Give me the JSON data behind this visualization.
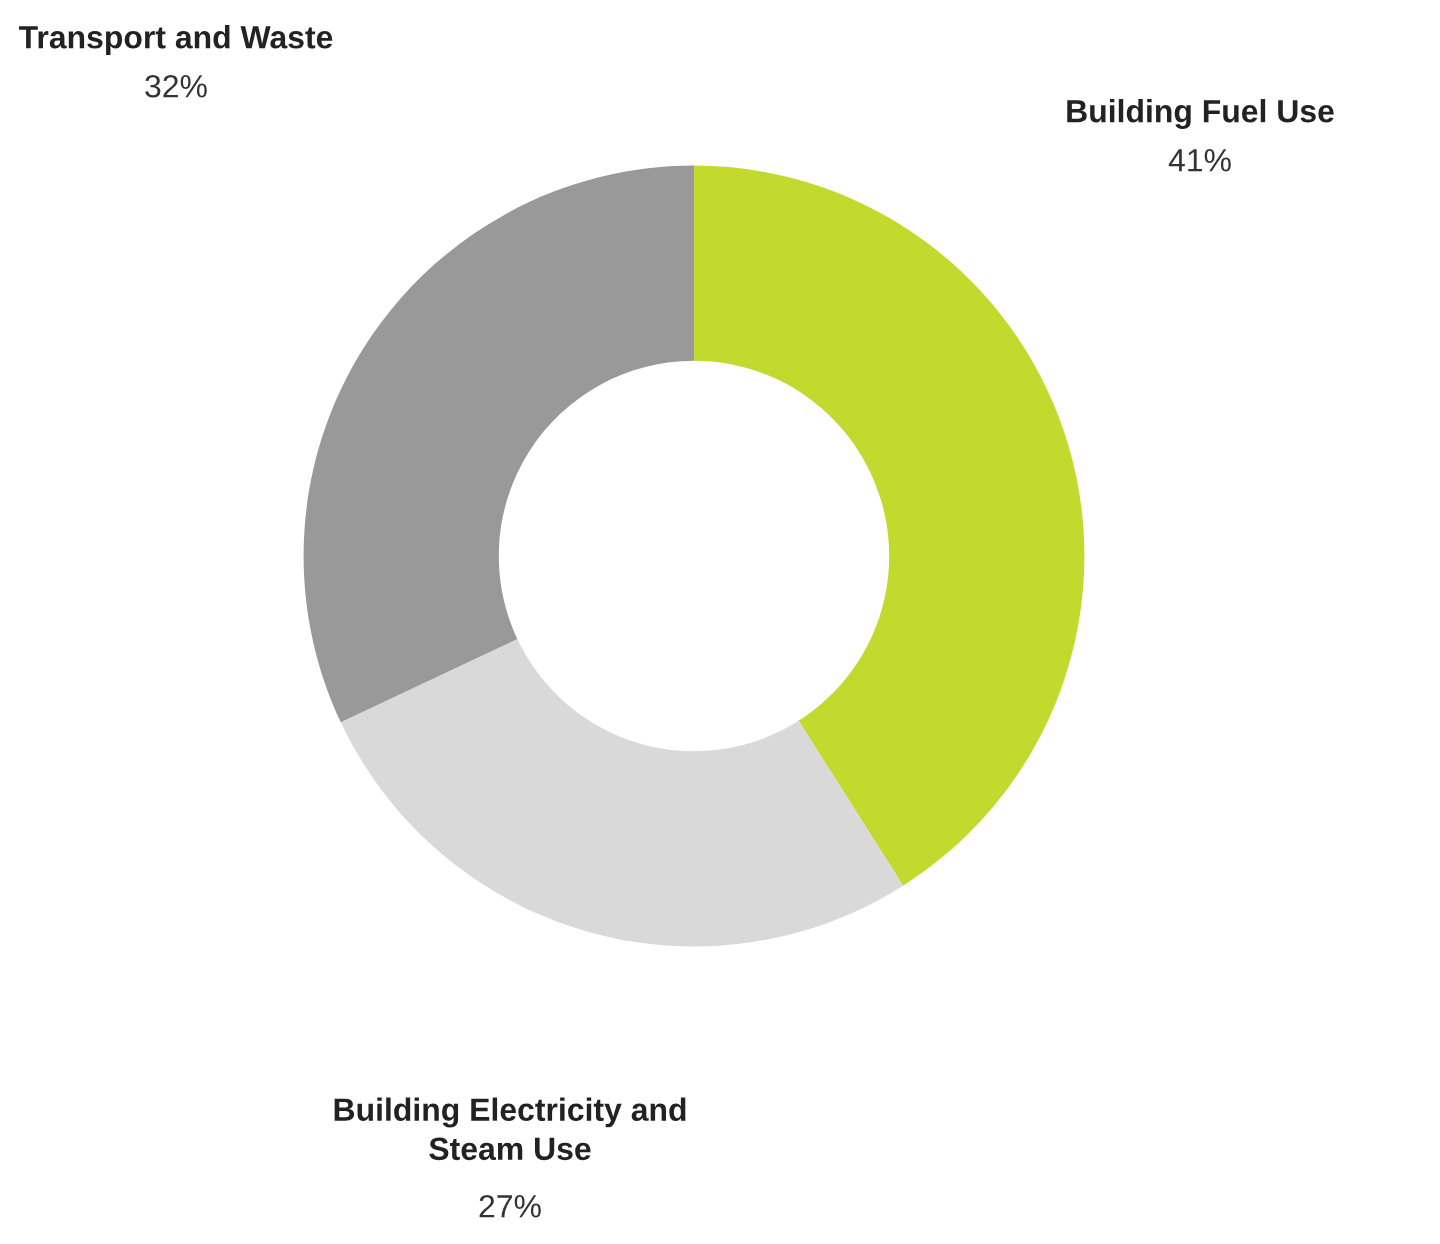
{
  "chart_data": {
    "type": "donut",
    "categories": [
      "Building Fuel Use",
      "Building Electricity and\nSteam Use",
      "Transport and Waste"
    ],
    "values": [
      41,
      27,
      32
    ],
    "colors": [
      "#c2d92e",
      "#d9d9d9",
      "#999999"
    ],
    "value_labels": [
      "41%",
      "27%",
      "32%"
    ]
  }
}
